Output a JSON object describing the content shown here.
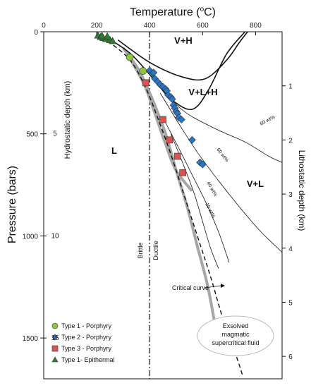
{
  "chart_data": {
    "type": "scatter",
    "title": "",
    "x_axis": {
      "label": "Temperature (oC)",
      "label_html_parts": [
        "Temperature (",
        "o",
        "C)"
      ],
      "range": [
        0,
        900
      ],
      "ticks": [
        "0",
        "200",
        "400",
        "600",
        "800"
      ]
    },
    "y_axis_left": {
      "label": "Pressure (bars)",
      "range": [
        0,
        1700
      ],
      "reversed": true,
      "ticks": [
        "0",
        "500",
        "1000",
        "1500"
      ]
    },
    "hydrostatic_axis": {
      "label": "Hydrostatic depth (km)",
      "ticks": [
        "5",
        "10",
        "15"
      ]
    },
    "lithostatic_axis": {
      "label": "Lithostatic depth (km)",
      "ticks": [
        "1",
        "2",
        "3",
        "4",
        "5",
        "6"
      ]
    },
    "regions": [
      "V+H",
      "V+L+H",
      "V+L",
      "L"
    ],
    "isopleth_labels": [
      "60 wt%",
      "60 wt%",
      "40 wt%",
      "10 wt%"
    ],
    "brittle_label": "Brittle",
    "ductile_label": "Ductile",
    "critical_curve_label": "Critical curve",
    "bubble_label": [
      "Exsolved",
      "magmatic",
      "supercritical fluid"
    ],
    "legend": [
      {
        "label": "Type 1 - Porphyry",
        "color": "#8cc63f",
        "shape": "circle"
      },
      {
        "label": "Type 2 - Porphyry",
        "color": "#2a75c4",
        "shape": "diamond"
      },
      {
        "label": "Type 3 - Porphyry",
        "color": "#d9534f",
        "shape": "square"
      },
      {
        "label": "Type 1- Epithermal",
        "color": "#2e7d32",
        "shape": "triangle"
      }
    ],
    "series": [
      {
        "name": "Type 1 - Porphyry",
        "color": "#8cc63f",
        "shape": "circle",
        "points": [
          [
            325,
            125
          ],
          [
            375,
            192
          ]
        ]
      },
      {
        "name": "Type 2 - Porphyry",
        "color": "#2a75c4",
        "shape": "diamond",
        "points": [
          [
            400,
            190
          ],
          [
            410,
            205
          ],
          [
            415,
            200
          ],
          [
            420,
            230
          ],
          [
            430,
            245
          ],
          [
            440,
            260
          ],
          [
            450,
            270
          ],
          [
            460,
            280
          ],
          [
            465,
            290
          ],
          [
            470,
            310
          ],
          [
            480,
            320
          ],
          [
            485,
            330
          ],
          [
            490,
            360
          ],
          [
            495,
            375
          ],
          [
            500,
            390
          ],
          [
            505,
            400
          ],
          [
            510,
            420
          ],
          [
            520,
            430
          ],
          [
            560,
            530
          ],
          [
            590,
            640
          ],
          [
            600,
            650
          ]
        ]
      },
      {
        "name": "Type 3 - Porphyry",
        "color": "#d9534f",
        "shape": "square",
        "points": [
          [
            385,
            250
          ],
          [
            450,
            430
          ],
          [
            475,
            530
          ],
          [
            505,
            610
          ],
          [
            525,
            690
          ]
        ]
      },
      {
        "name": "Type 1- Epithermal",
        "color": "#2e7d32",
        "shape": "triangle",
        "points": [
          [
            205,
            18
          ],
          [
            215,
            25
          ],
          [
            225,
            30
          ],
          [
            235,
            35
          ],
          [
            250,
            40
          ],
          [
            260,
            45
          ],
          [
            240,
            22
          ],
          [
            220,
            20
          ]
        ]
      }
    ],
    "curves": {
      "critical_curve": [
        [
          220,
          25
        ],
        [
          320,
          130
        ],
        [
          380,
          260
        ],
        [
          430,
          420
        ],
        [
          480,
          600
        ],
        [
          530,
          800
        ],
        [
          580,
          1000
        ],
        [
          630,
          1200
        ],
        [
          680,
          1420
        ],
        [
          730,
          1600
        ],
        [
          750,
          1680
        ]
      ],
      "gray_curve_1": [
        [
          300,
          80
        ],
        [
          360,
          190
        ],
        [
          410,
          330
        ],
        [
          460,
          500
        ],
        [
          500,
          680
        ],
        [
          540,
          850
        ],
        [
          580,
          1050
        ],
        [
          620,
          1250
        ],
        [
          650,
          1460
        ]
      ],
      "gray_curve_2": [
        [
          330,
          140
        ],
        [
          380,
          260
        ],
        [
          420,
          400
        ],
        [
          460,
          550
        ],
        [
          500,
          680
        ],
        [
          560,
          780
        ]
      ],
      "halite_saturation": [
        [
          240,
          30
        ],
        [
          330,
          110
        ],
        [
          420,
          240
        ],
        [
          480,
          330
        ],
        [
          560,
          380
        ],
        [
          620,
          290
        ],
        [
          690,
          110
        ],
        [
          760,
          0
        ]
      ],
      "vh_boundary": [
        [
          280,
          40
        ],
        [
          400,
          150
        ],
        [
          520,
          220
        ],
        [
          610,
          230
        ],
        [
          690,
          140
        ],
        [
          740,
          50
        ],
        [
          770,
          0
        ]
      ],
      "isopleth_60a": [
        [
          420,
          240
        ],
        [
          520,
          380
        ],
        [
          640,
          470
        ],
        [
          760,
          540
        ],
        [
          850,
          610
        ],
        [
          900,
          640
        ]
      ],
      "isopleth_60b": [
        [
          440,
          300
        ],
        [
          510,
          450
        ],
        [
          580,
          590
        ],
        [
          660,
          730
        ],
        [
          740,
          860
        ],
        [
          820,
          980
        ],
        [
          900,
          1080
        ]
      ],
      "isopleth_40": [
        [
          450,
          420
        ],
        [
          510,
          570
        ],
        [
          560,
          700
        ],
        [
          610,
          830
        ],
        [
          660,
          980
        ],
        [
          700,
          1130
        ]
      ],
      "isopleth_10": [
        [
          480,
          500
        ],
        [
          530,
          660
        ],
        [
          570,
          800
        ],
        [
          600,
          930
        ],
        [
          630,
          1060
        ],
        [
          660,
          1160
        ]
      ]
    },
    "brittle_ductile_temperature": 400
  }
}
